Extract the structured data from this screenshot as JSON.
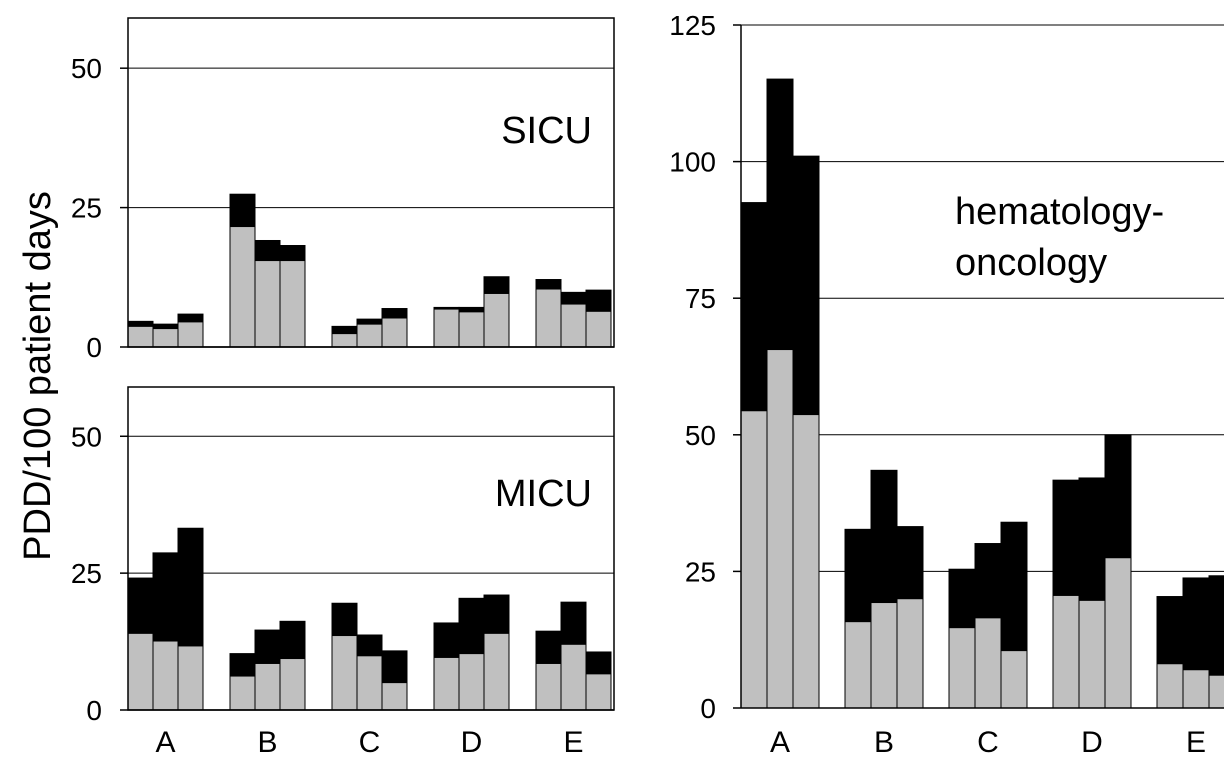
{
  "figure": {
    "ylabel": "PDD/100 patient days",
    "categories": [
      "A",
      "B",
      "C",
      "D",
      "E"
    ],
    "colors": {
      "lower": "#c0c0c0",
      "upper": "#000000",
      "gridline": "#000000",
      "background": "#ffffff"
    }
  },
  "chart_data": [
    {
      "type": "bar",
      "stacked": true,
      "panel": "SICU",
      "label": "SICU",
      "categories": [
        "A",
        "B",
        "C",
        "D",
        "E"
      ],
      "bars_per_category": 3,
      "yticks": [
        0,
        25,
        50
      ],
      "ylim": [
        0,
        59
      ],
      "grid": true,
      "bars": [
        {
          "category": "A",
          "lower": 3.7,
          "total": 4.6
        },
        {
          "category": "A",
          "lower": 3.3,
          "total": 4.1
        },
        {
          "category": "A",
          "lower": 4.5,
          "total": 5.9
        },
        {
          "category": "B",
          "lower": 21.6,
          "total": 27.4
        },
        {
          "category": "B",
          "lower": 15.5,
          "total": 19.1
        },
        {
          "category": "B",
          "lower": 15.5,
          "total": 18.2
        },
        {
          "category": "C",
          "lower": 2.4,
          "total": 3.7
        },
        {
          "category": "C",
          "lower": 4.1,
          "total": 5.0
        },
        {
          "category": "C",
          "lower": 5.2,
          "total": 6.9
        },
        {
          "category": "D",
          "lower": 6.8,
          "total": 7.1
        },
        {
          "category": "D",
          "lower": 6.3,
          "total": 7.1
        },
        {
          "category": "D",
          "lower": 9.6,
          "total": 12.6
        },
        {
          "category": "E",
          "lower": 10.4,
          "total": 12.1
        },
        {
          "category": "E",
          "lower": 7.7,
          "total": 9.8
        },
        {
          "category": "E",
          "lower": 6.4,
          "total": 10.2
        }
      ]
    },
    {
      "type": "bar",
      "stacked": true,
      "panel": "MICU",
      "label": "MICU",
      "categories": [
        "A",
        "B",
        "C",
        "D",
        "E"
      ],
      "bars_per_category": 3,
      "yticks": [
        0,
        25,
        50
      ],
      "ylim": [
        0,
        59
      ],
      "grid": true,
      "bars": [
        {
          "category": "A",
          "lower": 14.0,
          "total": 24.1
        },
        {
          "category": "A",
          "lower": 12.6,
          "total": 28.7
        },
        {
          "category": "A",
          "lower": 11.7,
          "total": 33.2
        },
        {
          "category": "B",
          "lower": 6.2,
          "total": 10.3
        },
        {
          "category": "B",
          "lower": 8.5,
          "total": 14.6
        },
        {
          "category": "B",
          "lower": 9.4,
          "total": 16.2
        },
        {
          "category": "C",
          "lower": 13.6,
          "total": 19.5
        },
        {
          "category": "C",
          "lower": 9.9,
          "total": 13.7
        },
        {
          "category": "C",
          "lower": 5.0,
          "total": 10.8
        },
        {
          "category": "D",
          "lower": 9.6,
          "total": 15.9
        },
        {
          "category": "D",
          "lower": 10.3,
          "total": 20.4
        },
        {
          "category": "D",
          "lower": 14.0,
          "total": 21.0
        },
        {
          "category": "E",
          "lower": 8.5,
          "total": 14.4
        },
        {
          "category": "E",
          "lower": 12.0,
          "total": 19.7
        },
        {
          "category": "E",
          "lower": 6.6,
          "total": 10.6
        }
      ]
    },
    {
      "type": "bar",
      "stacked": true,
      "panel": "hematology-oncology",
      "label_lines": [
        "hematology-",
        "oncology"
      ],
      "categories": [
        "A",
        "B",
        "C",
        "D",
        "E"
      ],
      "bars_per_category": 3,
      "yticks": [
        0,
        25,
        50,
        75,
        100,
        125
      ],
      "ylim": [
        0,
        125
      ],
      "grid": true,
      "bars": [
        {
          "category": "A",
          "lower": 54.4,
          "total": 92.5
        },
        {
          "category": "A",
          "lower": 65.6,
          "total": 115.1
        },
        {
          "category": "A",
          "lower": 53.7,
          "total": 101.0
        },
        {
          "category": "B",
          "lower": 15.8,
          "total": 32.7
        },
        {
          "category": "B",
          "lower": 19.3,
          "total": 43.5
        },
        {
          "category": "B",
          "lower": 20.0,
          "total": 33.2
        },
        {
          "category": "C",
          "lower": 14.7,
          "total": 25.4
        },
        {
          "category": "C",
          "lower": 16.5,
          "total": 30.1
        },
        {
          "category": "C",
          "lower": 10.5,
          "total": 34.0
        },
        {
          "category": "D",
          "lower": 20.6,
          "total": 41.7
        },
        {
          "category": "D",
          "lower": 19.7,
          "total": 42.1
        },
        {
          "category": "D",
          "lower": 27.5,
          "total": 50.0
        },
        {
          "category": "E",
          "lower": 8.1,
          "total": 20.4
        },
        {
          "category": "E",
          "lower": 7.0,
          "total": 23.8
        },
        {
          "category": "E",
          "lower": 6.0,
          "total": 24.2
        }
      ]
    }
  ]
}
